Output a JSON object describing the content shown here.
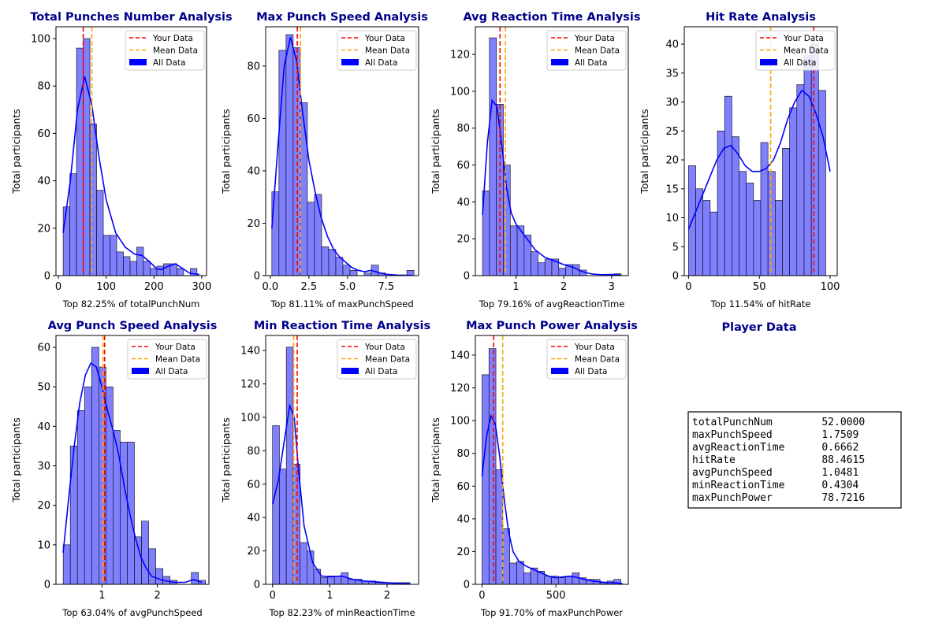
{
  "colors": {
    "hist": "#8080ff",
    "kde": "#0000ff",
    "your": "#ff0000",
    "mean": "#ffa500",
    "title": "#00008b"
  },
  "legend": {
    "your": "Your Data",
    "mean": "Mean Data",
    "all": "All Data"
  },
  "chart_data": [
    {
      "type": "bar",
      "title": "Total Punches Number Analysis",
      "xlabel": "Top 82.25% of totalPunchNum",
      "ylabel": "Total participants",
      "xlim": [
        -5,
        310
      ],
      "ylim": [
        0,
        105
      ],
      "xticks": [
        0,
        100,
        200,
        300
      ],
      "xtick_labels": [
        "0",
        "100",
        "200",
        "300"
      ],
      "yticks": [
        0,
        20,
        40,
        60,
        80,
        100
      ],
      "ytick_labels": [
        "0",
        "20",
        "40",
        "60",
        "80",
        "100"
      ],
      "bin_start": 10,
      "bin_width": 14,
      "legend_position": "top-right",
      "grid": false,
      "counts": [
        29,
        43,
        96,
        100,
        64,
        36,
        17,
        17,
        10,
        8,
        6,
        12,
        6,
        3,
        4,
        5,
        5,
        3,
        0,
        3
      ],
      "kde": [
        [
          10,
          18
        ],
        [
          25,
          40
        ],
        [
          40,
          70
        ],
        [
          55,
          84
        ],
        [
          70,
          72
        ],
        [
          85,
          50
        ],
        [
          100,
          32
        ],
        [
          120,
          18
        ],
        [
          140,
          12
        ],
        [
          160,
          9
        ],
        [
          175,
          8.5
        ],
        [
          190,
          6
        ],
        [
          205,
          3
        ],
        [
          215,
          2.5
        ],
        [
          230,
          4
        ],
        [
          245,
          5
        ],
        [
          260,
          3
        ],
        [
          275,
          1
        ],
        [
          295,
          0.5
        ]
      ],
      "your_value": 52,
      "mean_value": 70
    },
    {
      "type": "bar",
      "title": "Max Punch Speed Analysis",
      "xlabel": "Top 81.11% of maxPunchSpeed",
      "ylabel": "Total participants",
      "xlim": [
        -0.3,
        9.6
      ],
      "ylim": [
        0,
        95
      ],
      "xticks": [
        0,
        2.5,
        5,
        7.5
      ],
      "xtick_labels": [
        "0.0",
        "2.5",
        "5.0",
        "7.5"
      ],
      "yticks": [
        0,
        20,
        40,
        60,
        80
      ],
      "ytick_labels": [
        "0",
        "20",
        "40",
        "60",
        "80"
      ],
      "bin_start": 0.1,
      "bin_width": 0.46,
      "legend_position": "top-right",
      "grid": false,
      "counts": [
        32,
        86,
        92,
        87,
        66,
        28,
        31,
        11,
        10,
        7,
        4,
        2,
        0,
        1,
        4,
        1,
        0,
        0,
        0,
        2
      ],
      "kde": [
        [
          0.1,
          18
        ],
        [
          0.5,
          50
        ],
        [
          0.9,
          80
        ],
        [
          1.3,
          91
        ],
        [
          1.7,
          82
        ],
        [
          2.1,
          62
        ],
        [
          2.5,
          44
        ],
        [
          2.9,
          32
        ],
        [
          3.3,
          22
        ],
        [
          3.7,
          15
        ],
        [
          4.1,
          10
        ],
        [
          4.5,
          7
        ],
        [
          4.9,
          5
        ],
        [
          5.3,
          3
        ],
        [
          5.7,
          2
        ],
        [
          6.1,
          1.5
        ],
        [
          6.5,
          2
        ],
        [
          7.0,
          1.2
        ],
        [
          7.5,
          0.5
        ],
        [
          8.2,
          0.2
        ],
        [
          9.2,
          0.1
        ]
      ],
      "your_value": 1.75,
      "mean_value": 1.95
    },
    {
      "type": "bar",
      "title": "Avg Reaction Time Analysis",
      "xlabel": "Top 79.16% of avgReactionTime",
      "ylabel": "Total participants",
      "xlim": [
        0.15,
        3.35
      ],
      "ylim": [
        0,
        135
      ],
      "xticks": [
        1,
        2,
        3
      ],
      "xtick_labels": [
        "1",
        "2",
        "3"
      ],
      "yticks": [
        0,
        20,
        40,
        60,
        80,
        100,
        120
      ],
      "ytick_labels": [
        "0",
        "20",
        "40",
        "60",
        "80",
        "100",
        "120"
      ],
      "bin_start": 0.3,
      "bin_width": 0.145,
      "legend_position": "top-right",
      "grid": false,
      "counts": [
        46,
        129,
        93,
        60,
        27,
        27,
        22,
        13,
        7,
        9,
        9,
        4,
        6,
        6,
        3,
        0,
        0,
        0,
        0,
        1
      ],
      "kde": [
        [
          0.3,
          33
        ],
        [
          0.4,
          72
        ],
        [
          0.5,
          95
        ],
        [
          0.6,
          92
        ],
        [
          0.7,
          72
        ],
        [
          0.8,
          48
        ],
        [
          0.9,
          34
        ],
        [
          1.0,
          28
        ],
        [
          1.2,
          21
        ],
        [
          1.4,
          14
        ],
        [
          1.6,
          10
        ],
        [
          1.8,
          8
        ],
        [
          2.0,
          6
        ],
        [
          2.2,
          4.5
        ],
        [
          2.4,
          2
        ],
        [
          2.6,
          0.8
        ],
        [
          2.8,
          0.5
        ],
        [
          3.0,
          0.6
        ],
        [
          3.2,
          0.3
        ]
      ],
      "your_value": 0.6662,
      "mean_value": 0.78
    },
    {
      "type": "bar",
      "title": "Hit Rate Analysis",
      "xlabel": "Top 11.54% of hitRate",
      "ylabel": "Total participants",
      "xlim": [
        -3,
        105
      ],
      "ylim": [
        0,
        43
      ],
      "xticks": [
        0,
        50,
        100
      ],
      "xtick_labels": [
        "0",
        "50",
        "100"
      ],
      "yticks": [
        0,
        5,
        10,
        15,
        20,
        25,
        30,
        35,
        40
      ],
      "ytick_labels": [
        "0",
        "5",
        "10",
        "15",
        "20",
        "25",
        "30",
        "35",
        "40"
      ],
      "bin_start": 0,
      "bin_width": 5.1,
      "legend_position": "top-right",
      "grid": false,
      "counts": [
        19,
        15,
        13,
        11,
        25,
        31,
        24,
        18,
        16,
        13,
        23,
        18,
        13,
        22,
        29,
        33,
        38,
        40,
        32
      ],
      "kde": [
        [
          0,
          8
        ],
        [
          5,
          11
        ],
        [
          10,
          14
        ],
        [
          15,
          17
        ],
        [
          20,
          20
        ],
        [
          25,
          22
        ],
        [
          30,
          22.5
        ],
        [
          35,
          21
        ],
        [
          40,
          19
        ],
        [
          45,
          18
        ],
        [
          50,
          18
        ],
        [
          55,
          18.5
        ],
        [
          60,
          20
        ],
        [
          65,
          23
        ],
        [
          70,
          27
        ],
        [
          75,
          30
        ],
        [
          80,
          32
        ],
        [
          85,
          31
        ],
        [
          90,
          28
        ],
        [
          95,
          24
        ],
        [
          100,
          18
        ]
      ],
      "your_value": 88.4615,
      "mean_value": 58
    },
    {
      "type": "bar",
      "title": "Avg Punch Speed Analysis",
      "xlabel": "Top 63.04% of avgPunchSpeed",
      "ylabel": "Total participants",
      "xlim": [
        0.17,
        2.93
      ],
      "ylim": [
        0,
        63
      ],
      "xticks": [
        1,
        2
      ],
      "xtick_labels": [
        "1",
        "2"
      ],
      "yticks": [
        0,
        10,
        20,
        30,
        40,
        50,
        60
      ],
      "ytick_labels": [
        "0",
        "10",
        "20",
        "30",
        "40",
        "50",
        "60"
      ],
      "bin_start": 0.3,
      "bin_width": 0.1285,
      "legend_position": "top-right",
      "grid": false,
      "counts": [
        10,
        35,
        44,
        50,
        60,
        55,
        50,
        39,
        36,
        36,
        12,
        16,
        9,
        4,
        2,
        1,
        0,
        0,
        3,
        1
      ],
      "kde": [
        [
          0.3,
          8
        ],
        [
          0.4,
          22
        ],
        [
          0.5,
          35
        ],
        [
          0.6,
          46
        ],
        [
          0.7,
          53
        ],
        [
          0.8,
          56
        ],
        [
          0.9,
          55
        ],
        [
          1.0,
          50
        ],
        [
          1.1,
          44
        ],
        [
          1.2,
          39
        ],
        [
          1.3,
          33
        ],
        [
          1.4,
          25
        ],
        [
          1.5,
          18
        ],
        [
          1.6,
          12
        ],
        [
          1.7,
          7
        ],
        [
          1.8,
          4
        ],
        [
          1.9,
          2
        ],
        [
          2.1,
          1
        ],
        [
          2.3,
          0.5
        ],
        [
          2.5,
          0.5
        ],
        [
          2.65,
          1.2
        ],
        [
          2.8,
          0.5
        ]
      ],
      "your_value": 1.0481,
      "mean_value": 1.02
    },
    {
      "type": "bar",
      "title": "Min Reaction Time Analysis",
      "xlabel": "Top 82.23% of minReactionTime",
      "ylabel": "Total participants",
      "xlim": [
        -0.12,
        2.55
      ],
      "ylim": [
        0,
        149
      ],
      "xticks": [
        0,
        1,
        2
      ],
      "xtick_labels": [
        "0",
        "1",
        "2"
      ],
      "yticks": [
        0,
        20,
        40,
        60,
        80,
        100,
        120,
        140
      ],
      "ytick_labels": [
        "0",
        "20",
        "40",
        "60",
        "80",
        "100",
        "120",
        "140"
      ],
      "bin_start": 0,
      "bin_width": 0.12,
      "legend_position": "top-right",
      "grid": false,
      "counts": [
        95,
        69,
        142,
        72,
        25,
        20,
        9,
        4,
        5,
        5,
        7,
        3,
        3,
        2,
        2,
        1,
        1,
        1,
        1,
        1
      ],
      "kde": [
        [
          0,
          48
        ],
        [
          0.1,
          62
        ],
        [
          0.2,
          85
        ],
        [
          0.3,
          107
        ],
        [
          0.38,
          100
        ],
        [
          0.45,
          70
        ],
        [
          0.55,
          35
        ],
        [
          0.7,
          13
        ],
        [
          0.85,
          5
        ],
        [
          1.0,
          4.5
        ],
        [
          1.2,
          5
        ],
        [
          1.4,
          3
        ],
        [
          1.6,
          2
        ],
        [
          1.8,
          1.5
        ],
        [
          2.0,
          1
        ],
        [
          2.2,
          0.5
        ],
        [
          2.4,
          0.3
        ]
      ],
      "your_value": 0.4304,
      "mean_value": 0.37
    },
    {
      "type": "bar",
      "title": "Max Punch Power Analysis",
      "xlabel": "Top 91.70% of maxPunchPower",
      "ylabel": "Total participants",
      "xlim": [
        -45,
        990
      ],
      "ylim": [
        0,
        152
      ],
      "xticks": [
        0,
        500
      ],
      "xtick_labels": [
        "0",
        "500"
      ],
      "yticks": [
        0,
        20,
        40,
        60,
        80,
        100,
        120,
        140
      ],
      "ytick_labels": [
        "0",
        "20",
        "40",
        "60",
        "80",
        "100",
        "120",
        "140"
      ],
      "bin_start": 0,
      "bin_width": 47,
      "legend_position": "top-right",
      "grid": false,
      "counts": [
        128,
        144,
        70,
        34,
        13,
        14,
        7,
        10,
        8,
        5,
        5,
        4,
        5,
        7,
        4,
        3,
        3,
        1,
        2,
        3
      ],
      "kde": [
        [
          0,
          66
        ],
        [
          30,
          90
        ],
        [
          60,
          103
        ],
        [
          90,
          98
        ],
        [
          120,
          78
        ],
        [
          150,
          52
        ],
        [
          180,
          32
        ],
        [
          210,
          20
        ],
        [
          250,
          14
        ],
        [
          300,
          11
        ],
        [
          350,
          9
        ],
        [
          400,
          7
        ],
        [
          450,
          5
        ],
        [
          500,
          4
        ],
        [
          550,
          4.5
        ],
        [
          600,
          5
        ],
        [
          650,
          4
        ],
        [
          700,
          3
        ],
        [
          750,
          2
        ],
        [
          800,
          1.5
        ],
        [
          850,
          1
        ],
        [
          900,
          1
        ],
        [
          950,
          0.5
        ]
      ],
      "your_value": 78.7216,
      "mean_value": 140
    }
  ],
  "player": {
    "title": "Player Data",
    "rows": [
      "totalPunchNum        52.0000",
      "maxPunchSpeed        1.7509",
      "avgReactionTime      0.6662",
      "hitRate              88.4615",
      "avgPunchSpeed        1.0481",
      "minReactionTime      0.4304",
      "maxPunchPower        78.7216"
    ]
  }
}
